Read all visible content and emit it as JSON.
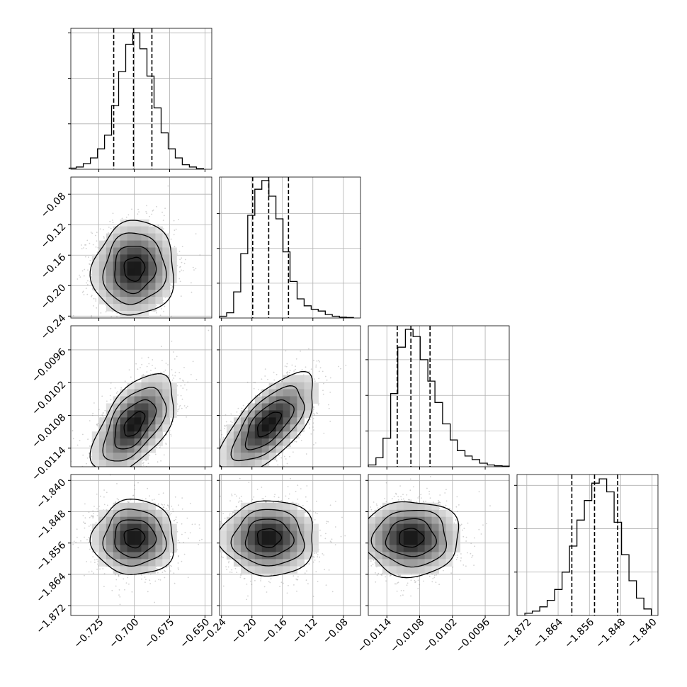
{
  "chart_data": {
    "type": "corner",
    "parameters": [
      {
        "range": [
          -0.7448,
          -0.6452
        ],
        "ticks": [
          -0.725,
          -0.7,
          -0.675,
          -0.65
        ],
        "tick_labels": [
          "−0.725",
          "−0.700",
          "−0.675",
          "−0.650"
        ],
        "quantiles": [
          -0.7145,
          -0.7005,
          -0.6875
        ],
        "hist": {
          "bin_edges": [
            -0.746,
            -0.741,
            -0.736,
            -0.731,
            -0.726,
            -0.721,
            -0.716,
            -0.711,
            -0.706,
            -0.701,
            -0.696,
            -0.691,
            -0.686,
            -0.681,
            -0.676,
            -0.671,
            -0.666,
            -0.661,
            -0.656,
            -0.651
          ],
          "counts": [
            0.5,
            1,
            2.5,
            5,
            9,
            15,
            28,
            43,
            55,
            60,
            53,
            41,
            27,
            16,
            9,
            5,
            2,
            1,
            0.3
          ],
          "ticks": [
            20,
            40,
            60
          ],
          "ylim": [
            0,
            62
          ]
        }
      },
      {
        "range": [
          -0.2425,
          -0.0575
        ],
        "ticks": [
          -0.24,
          -0.2,
          -0.16,
          -0.12,
          -0.08
        ],
        "tick_labels": [
          "−0.24",
          "−0.20",
          "−0.16",
          "−0.12",
          "−0.08"
        ],
        "quantiles": [
          -0.199,
          -0.178,
          -0.152
        ],
        "hist": {
          "bin_edges": [
            -0.2425,
            -0.2332,
            -0.224,
            -0.2147,
            -0.2055,
            -0.1962,
            -0.187,
            -0.1777,
            -0.1685,
            -0.1592,
            -0.15,
            -0.1407,
            -0.1315,
            -0.1222,
            -0.113,
            -0.1037,
            -0.0945,
            -0.0852,
            -0.076,
            -0.0667
          ],
          "counts": [
            1,
            3,
            15,
            37,
            59,
            74,
            79,
            70,
            57,
            38,
            21,
            11,
            7,
            5,
            4,
            2,
            1,
            0.5,
            0.3
          ],
          "ticks": [
            20,
            40,
            60
          ],
          "ylim": [
            0,
            81
          ]
        }
      },
      {
        "range": [
          -0.01174,
          -0.00916
        ],
        "ticks": [
          -0.0114,
          -0.0108,
          -0.0102,
          -0.0096
        ],
        "tick_labels": [
          "−0.0114",
          "−0.0108",
          "−0.0102",
          "−0.0096"
        ],
        "quantiles": [
          -0.01121,
          -0.01096,
          -0.01061
        ],
        "hist": {
          "bin_edges": [
            -0.01174,
            -0.0116,
            -0.01147,
            -0.01133,
            -0.0112,
            -0.01106,
            -0.01092,
            -0.01079,
            -0.01065,
            -0.01052,
            -0.01038,
            -0.01024,
            -0.01011,
            -0.00997,
            -0.00984,
            -0.0097,
            -0.00956,
            -0.00943,
            -0.00929,
            -0.00916
          ],
          "counts": [
            1,
            5,
            16,
            41,
            67,
            77,
            73,
            60,
            48,
            36,
            24,
            15,
            9,
            6,
            4,
            2,
            1,
            0.5,
            0.3
          ],
          "ticks": [
            20,
            40,
            60
          ],
          "ylim": [
            0,
            79
          ]
        }
      },
      {
        "range": [
          -1.8745,
          -1.8385
        ],
        "ticks": [
          -1.872,
          -1.864,
          -1.856,
          -1.848,
          -1.84
        ],
        "tick_labels": [
          "−1.872",
          "−1.864",
          "−1.856",
          "−1.848",
          "−1.840"
        ],
        "quantiles": [
          -1.8605,
          -1.8547,
          -1.8488
        ],
        "hist": {
          "bin_edges": [
            -1.8725,
            -1.8706,
            -1.8687,
            -1.8668,
            -1.8649,
            -1.863,
            -1.8611,
            -1.8592,
            -1.8573,
            -1.8554,
            -1.8535,
            -1.8516,
            -1.8497,
            -1.8478,
            -1.8459,
            -1.844,
            -1.8421,
            -1.8402
          ],
          "counts": [
            1,
            2,
            4,
            7,
            12,
            20,
            32,
            44,
            53,
            61,
            63,
            57,
            43,
            28,
            16,
            8,
            3
          ],
          "ticks": [
            20,
            40,
            60
          ],
          "ylim": [
            0,
            65
          ]
        }
      }
    ],
    "pairs": [
      {
        "row": 1,
        "col": 0,
        "mean": [
          -0.7,
          -0.178
        ],
        "sd": [
          0.0145,
          0.031
        ],
        "rho": 0.05
      },
      {
        "row": 2,
        "col": 0,
        "mean": [
          -0.7,
          -0.01096
        ],
        "sd": [
          0.0145,
          0.00045
        ],
        "rho": 0.55
      },
      {
        "row": 2,
        "col": 1,
        "mean": [
          -0.178,
          -0.01096
        ],
        "sd": [
          0.031,
          0.00045
        ],
        "rho": 0.65
      },
      {
        "row": 3,
        "col": 0,
        "mean": [
          -0.7,
          -1.8547
        ],
        "sd": [
          0.0145,
          0.0048
        ],
        "rho": 0.0
      },
      {
        "row": 3,
        "col": 1,
        "mean": [
          -0.178,
          -1.8547
        ],
        "sd": [
          0.031,
          0.0048
        ],
        "rho": 0.0
      },
      {
        "row": 3,
        "col": 2,
        "mean": [
          -0.01096,
          -1.8547
        ],
        "sd": [
          0.00045,
          0.0048
        ],
        "rho": 0.0
      }
    ],
    "contour_levels_sigma": [
      0.5,
      1.0,
      1.5,
      2.0
    ],
    "quantiles": [
      0.16,
      0.5,
      0.84
    ],
    "grid": true,
    "colors": {
      "line": "#000000",
      "grid": "#b0b0b0",
      "points": "#7f7f7f"
    }
  }
}
